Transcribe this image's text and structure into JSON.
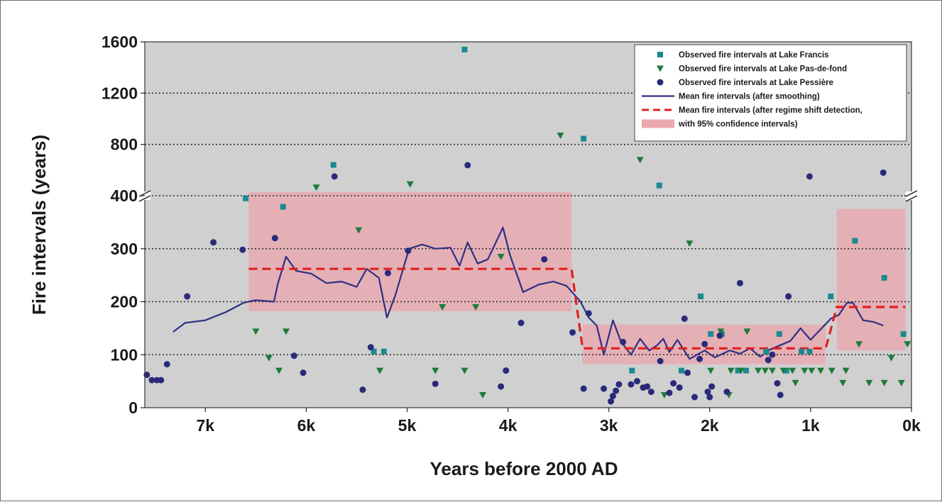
{
  "chart_data": {
    "type": "scatter",
    "title": "",
    "xlabel": "Years before 2000 AD",
    "ylabel": "Fire intervals (years)",
    "x_reversed": true,
    "xlim": [
      7600,
      0
    ],
    "x_ticks": [
      7000,
      6000,
      5000,
      4000,
      3000,
      2000,
      1000,
      0
    ],
    "x_tick_labels": [
      "7k",
      "6k",
      "5k",
      "4k",
      "3k",
      "2k",
      "1k",
      "0k"
    ],
    "y_axis_broken": true,
    "y_break_at": 400,
    "ylim_lower": [
      0,
      400
    ],
    "ylim_upper": [
      400,
      1600
    ],
    "y_ticks_lower": [
      0,
      100,
      200,
      300,
      400
    ],
    "y_ticks_upper": [
      800,
      1200,
      1600
    ],
    "y_tick_labels": [
      "0",
      "100",
      "200",
      "300",
      "400",
      "800",
      "1200",
      "1600"
    ],
    "grid": "horizontal dotted",
    "legend_position": "top-right",
    "colors": {
      "plot_background": "#d0d0d0",
      "francis": "#1a8a8e",
      "pas_de_fond": "#1e7a3a",
      "pessiere": "#2a2a7a",
      "smoothed_line": "#2f2f84",
      "regime_line": "#e0201e",
      "confidence_band": "#e8a8ae"
    },
    "series": [
      {
        "name": "Observed fire intervals at Lake Francis",
        "marker": "square",
        "points": [
          [
            6600,
            395
          ],
          [
            6230,
            379
          ],
          [
            5730,
            640
          ],
          [
            5330,
            106
          ],
          [
            5230,
            106
          ],
          [
            4430,
            1540
          ],
          [
            3250,
            845
          ],
          [
            2770,
            70
          ],
          [
            2500,
            480
          ],
          [
            2280,
            70
          ],
          [
            2090,
            210
          ],
          [
            1990,
            139
          ],
          [
            1880,
            139
          ],
          [
            1720,
            70
          ],
          [
            1640,
            70
          ],
          [
            1440,
            106
          ],
          [
            1310,
            139
          ],
          [
            1240,
            70
          ],
          [
            1090,
            106
          ],
          [
            1010,
            106
          ],
          [
            800,
            210
          ],
          [
            560,
            315
          ],
          [
            270,
            245
          ],
          [
            80,
            139
          ]
        ]
      },
      {
        "name": "Observed fire intervals at Lake Pas-de-fond",
        "marker": "triangle",
        "points": [
          [
            6500,
            144
          ],
          [
            6370,
            94
          ],
          [
            6270,
            70
          ],
          [
            6200,
            144
          ],
          [
            5900,
            465
          ],
          [
            5480,
            335
          ],
          [
            5270,
            70
          ],
          [
            4970,
            490
          ],
          [
            4720,
            70
          ],
          [
            4650,
            190
          ],
          [
            4430,
            70
          ],
          [
            4320,
            190
          ],
          [
            4250,
            24
          ],
          [
            4070,
            285
          ],
          [
            3480,
            870
          ],
          [
            2690,
            680
          ],
          [
            2450,
            24
          ],
          [
            2200,
            310
          ],
          [
            1990,
            70
          ],
          [
            1890,
            144
          ],
          [
            1810,
            24
          ],
          [
            1790,
            70
          ],
          [
            1690,
            70
          ],
          [
            1630,
            144
          ],
          [
            1520,
            70
          ],
          [
            1450,
            70
          ],
          [
            1380,
            70
          ],
          [
            1270,
            70
          ],
          [
            1180,
            70
          ],
          [
            1150,
            47
          ],
          [
            1060,
            70
          ],
          [
            990,
            70
          ],
          [
            900,
            70
          ],
          [
            790,
            70
          ],
          [
            680,
            47
          ],
          [
            650,
            70
          ],
          [
            520,
            120
          ],
          [
            420,
            47
          ],
          [
            270,
            47
          ],
          [
            200,
            94
          ],
          [
            100,
            47
          ],
          [
            40,
            120
          ]
        ]
      },
      {
        "name": "Observed fire intervals at Lake Pessière",
        "marker": "circle",
        "points": [
          [
            7580,
            62
          ],
          [
            7530,
            52
          ],
          [
            7480,
            52
          ],
          [
            7440,
            52
          ],
          [
            7380,
            82
          ],
          [
            7180,
            210
          ],
          [
            6920,
            312
          ],
          [
            6630,
            298
          ],
          [
            6310,
            320
          ],
          [
            6030,
            66
          ],
          [
            6120,
            98
          ],
          [
            5720,
            550
          ],
          [
            5440,
            34
          ],
          [
            5360,
            114
          ],
          [
            5190,
            254
          ],
          [
            4990,
            296
          ],
          [
            4720,
            45
          ],
          [
            4400,
            638
          ],
          [
            4070,
            40
          ],
          [
            4020,
            70
          ],
          [
            3870,
            160
          ],
          [
            3640,
            280
          ],
          [
            3360,
            142
          ],
          [
            3250,
            36
          ],
          [
            3200,
            178
          ],
          [
            3050,
            36
          ],
          [
            2980,
            12
          ],
          [
            2960,
            22
          ],
          [
            2930,
            32
          ],
          [
            2900,
            44
          ],
          [
            2860,
            124
          ],
          [
            2780,
            44
          ],
          [
            2720,
            50
          ],
          [
            2660,
            38
          ],
          [
            2620,
            40
          ],
          [
            2580,
            30
          ],
          [
            2490,
            88
          ],
          [
            2400,
            28
          ],
          [
            2360,
            46
          ],
          [
            2300,
            38
          ],
          [
            2250,
            168
          ],
          [
            2220,
            66
          ],
          [
            2150,
            20
          ],
          [
            2100,
            92
          ],
          [
            2050,
            120
          ],
          [
            2020,
            30
          ],
          [
            2000,
            20
          ],
          [
            1980,
            40
          ],
          [
            1900,
            136
          ],
          [
            1830,
            30
          ],
          [
            1700,
            235
          ],
          [
            1420,
            90
          ],
          [
            1380,
            100
          ],
          [
            1330,
            46
          ],
          [
            1300,
            24
          ],
          [
            1220,
            210
          ],
          [
            1010,
            550
          ],
          [
            280,
            580
          ]
        ]
      }
    ],
    "lines": [
      {
        "name": "Mean fire intervals (after smoothing)",
        "style": "solid",
        "points": [
          [
            7320,
            143
          ],
          [
            7200,
            160
          ],
          [
            7000,
            165
          ],
          [
            6800,
            180
          ],
          [
            6620,
            198
          ],
          [
            6500,
            203
          ],
          [
            6320,
            200
          ],
          [
            6280,
            235
          ],
          [
            6200,
            285
          ],
          [
            6100,
            258
          ],
          [
            5950,
            253
          ],
          [
            5800,
            235
          ],
          [
            5650,
            238
          ],
          [
            5500,
            228
          ],
          [
            5400,
            262
          ],
          [
            5280,
            245
          ],
          [
            5200,
            170
          ],
          [
            5120,
            210
          ],
          [
            4980,
            300
          ],
          [
            4850,
            308
          ],
          [
            4720,
            300
          ],
          [
            4570,
            302
          ],
          [
            4480,
            268
          ],
          [
            4400,
            312
          ],
          [
            4300,
            272
          ],
          [
            4200,
            280
          ],
          [
            4050,
            340
          ],
          [
            3980,
            288
          ],
          [
            3850,
            218
          ],
          [
            3700,
            232
          ],
          [
            3550,
            238
          ],
          [
            3420,
            230
          ],
          [
            3280,
            200
          ],
          [
            3200,
            170
          ],
          [
            3120,
            155
          ],
          [
            3050,
            100
          ],
          [
            2960,
            165
          ],
          [
            2880,
            125
          ],
          [
            2780,
            100
          ],
          [
            2690,
            130
          ],
          [
            2600,
            108
          ],
          [
            2520,
            118
          ],
          [
            2460,
            130
          ],
          [
            2400,
            105
          ],
          [
            2320,
            128
          ],
          [
            2200,
            92
          ],
          [
            2050,
            108
          ],
          [
            1950,
            95
          ],
          [
            1800,
            108
          ],
          [
            1700,
            102
          ],
          [
            1600,
            112
          ],
          [
            1500,
            96
          ],
          [
            1400,
            110
          ],
          [
            1300,
            118
          ],
          [
            1200,
            126
          ],
          [
            1100,
            150
          ],
          [
            1000,
            128
          ],
          [
            900,
            148
          ],
          [
            800,
            168
          ],
          [
            720,
            175
          ],
          [
            640,
            198
          ],
          [
            580,
            198
          ],
          [
            480,
            165
          ],
          [
            380,
            162
          ],
          [
            280,
            155
          ]
        ]
      },
      {
        "name": "Mean fire intervals (after regime shift detection, with 95% confidence intervals)",
        "style": "dashed",
        "segments": [
          {
            "x_from": 6570,
            "x_to": 3370,
            "mean": 262,
            "ci": [
              182,
              430
            ]
          },
          {
            "x_from": 3260,
            "x_to": 850,
            "mean": 112,
            "ci": [
              82,
              157
            ]
          },
          {
            "x_from": 740,
            "x_to": 60,
            "mean": 190,
            "ci": [
              108,
              375
            ]
          }
        ]
      }
    ],
    "legend": [
      {
        "label": "Observed fire intervals at Lake Francis",
        "symbol": "square"
      },
      {
        "label": "Observed fire intervals at Lake Pas-de-fond",
        "symbol": "triangle"
      },
      {
        "label": "Observed fire intervals at Lake Pessière",
        "symbol": "circle"
      },
      {
        "label": "Mean fire intervals (after smoothing)",
        "symbol": "line"
      },
      {
        "label": "Mean fire intervals (after regime shift detection,",
        "symbol": "dashed"
      },
      {
        "label": "with 95% confidence intervals)",
        "symbol": "band"
      }
    ]
  }
}
